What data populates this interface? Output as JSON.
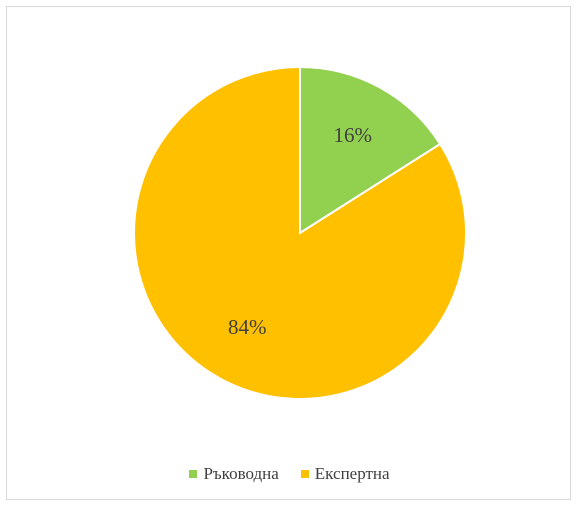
{
  "chart_data": {
    "type": "pie",
    "categories": [
      "Ръководна",
      "Експертна"
    ],
    "values": [
      16,
      84
    ],
    "value_labels": [
      "16%",
      "84%"
    ],
    "colors": [
      "#92d050",
      "#ffc000"
    ],
    "start_angle_deg": 0,
    "direction": "clockwise",
    "slice_border_color": "#ffffff",
    "legend_position": "bottom"
  }
}
